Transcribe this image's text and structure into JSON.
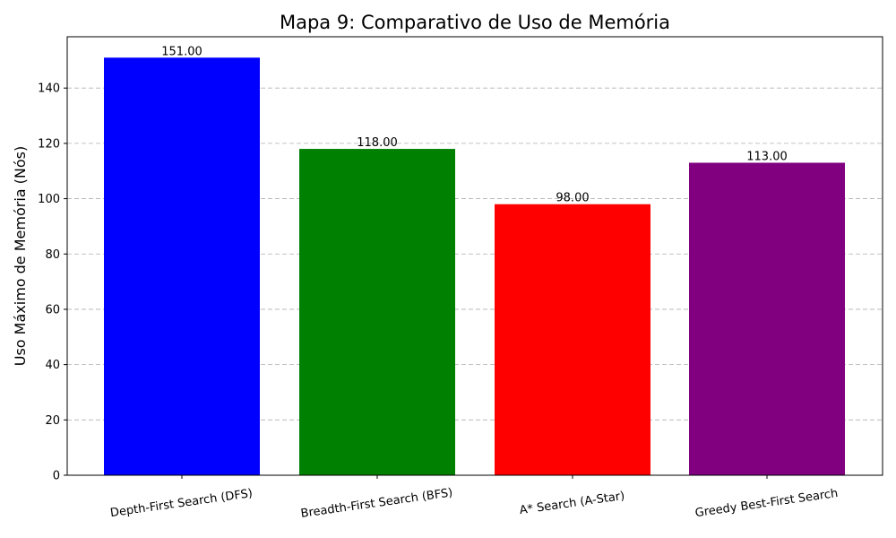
{
  "chart_data": {
    "type": "bar",
    "title": "Mapa 9: Comparativo de Uso de Memória",
    "xlabel": "",
    "ylabel": "Uso Máximo de Memória (Nós)",
    "categories": [
      "Depth-First Search (DFS)",
      "Breadth-First Search (BFS)",
      "A* Search (A-Star)",
      "Greedy Best-First Search"
    ],
    "values": [
      151,
      118,
      98,
      113
    ],
    "value_labels": [
      "151.00",
      "118.00",
      "98.00",
      "113.00"
    ],
    "colors": [
      "#0000ff",
      "#008000",
      "#ff0000",
      "#800080"
    ],
    "ylim": [
      0,
      158.55
    ],
    "yticks": [
      0,
      20,
      40,
      60,
      80,
      100,
      120,
      140
    ],
    "grid": "y-dashed",
    "xtick_rotation": "slight",
    "legend": "none"
  }
}
